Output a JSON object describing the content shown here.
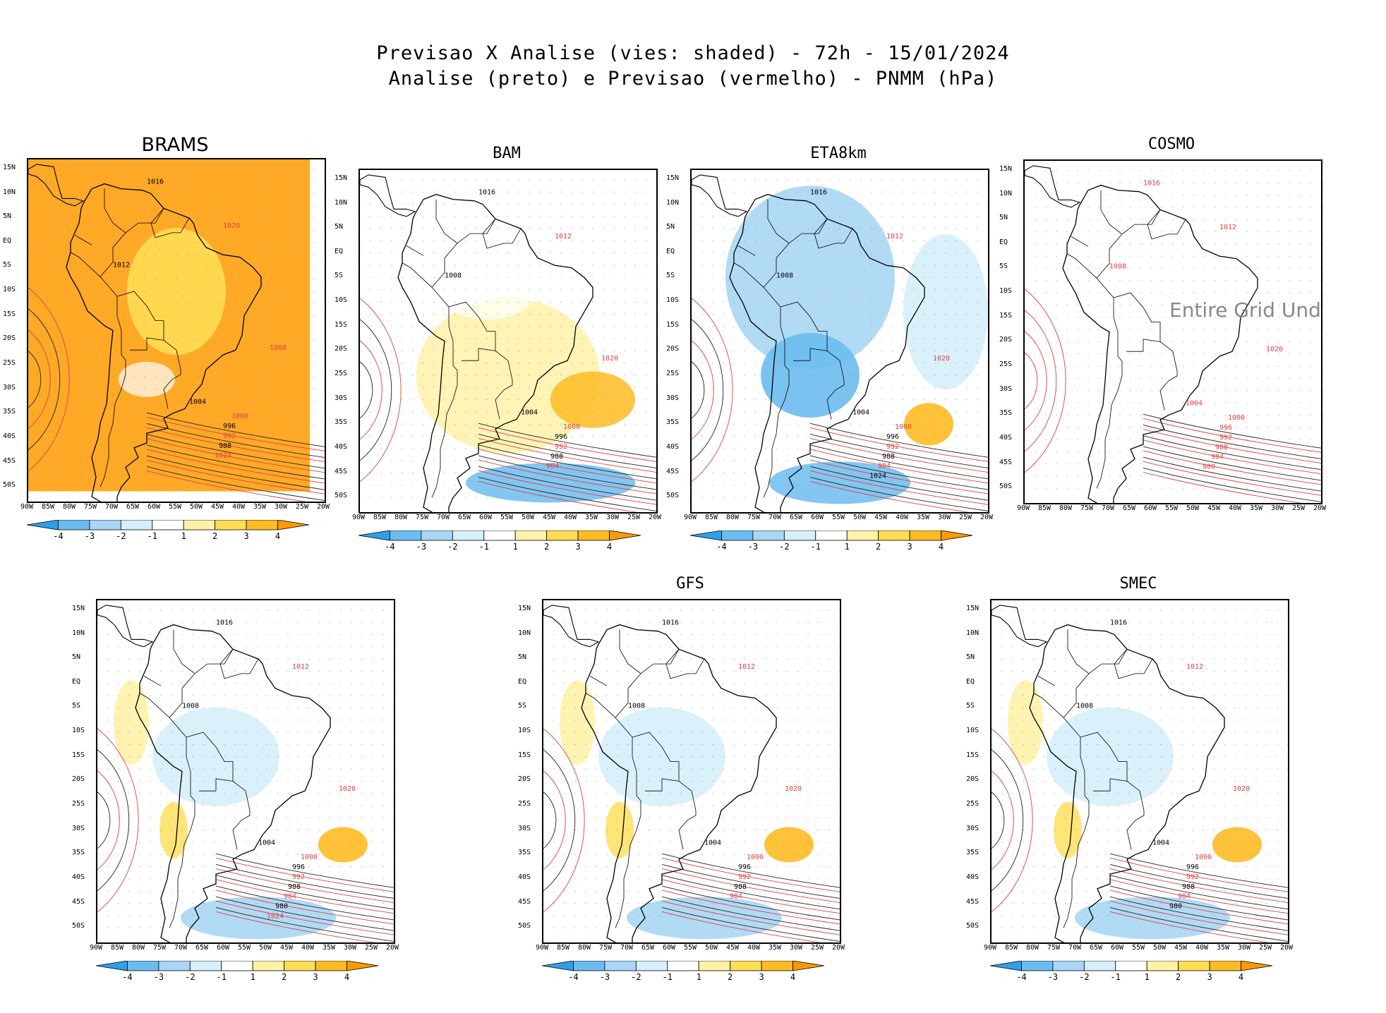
{
  "figure": {
    "title_line1": "Previsao X Analise (vies: shaded) - 72h - 15/01/2024",
    "title_line2": "Analise (preto) e Previsao (vermelho) - PNMM (hPa)"
  },
  "axes": {
    "lat_labels": [
      "15N",
      "10N",
      "5N",
      "EQ",
      "5S",
      "10S",
      "15S",
      "20S",
      "25S",
      "30S",
      "35S",
      "40S",
      "45S",
      "50S"
    ],
    "lon_labels": [
      "90W",
      "85W",
      "80W",
      "75W",
      "70W",
      "65W",
      "60W",
      "55W",
      "50W",
      "45W",
      "40W",
      "35W",
      "30W",
      "25W",
      "20W"
    ]
  },
  "colorbar": {
    "labels": [
      "-4",
      "-3",
      "-2",
      "-1",
      "1",
      "2",
      "3",
      "4"
    ],
    "colors": [
      "#2f9fe8",
      "#6cbcef",
      "#a8d6f4",
      "#d6f0fb",
      "#ffffff",
      "#fff2a8",
      "#ffdd55",
      "#ffbb22",
      "#ff9a00"
    ]
  },
  "panels": [
    {
      "name": "BRAMS",
      "bias": "warm-strong",
      "contours": [
        "1016",
        "1020",
        "1012",
        "1008",
        "1004",
        "1000",
        "996",
        "992",
        "988",
        "1024"
      ]
    },
    {
      "name": "BAM",
      "bias": "warm",
      "contours": [
        "1016",
        "1012",
        "1008",
        "1020",
        "1004",
        "1000",
        "996",
        "992",
        "988",
        "984"
      ]
    },
    {
      "name": "ETA8km",
      "bias": "cold",
      "contours": [
        "1016",
        "1012",
        "1008",
        "1020",
        "1004",
        "1000",
        "996",
        "992",
        "988",
        "984",
        "1024"
      ]
    },
    {
      "name": "COSMO",
      "bias": "none",
      "no_data": "Entire Grid Und",
      "contours": [
        "1016",
        "1012",
        "1008",
        "1020",
        "1004",
        "1000",
        "996",
        "992",
        "988",
        "984",
        "980"
      ]
    },
    {
      "name": "",
      "bias": "mixed",
      "contours": [
        "1016",
        "1012",
        "1008",
        "1020",
        "1004",
        "1000",
        "996",
        "992",
        "988",
        "984",
        "980",
        "1024"
      ]
    },
    {
      "name": "GFS",
      "bias": "mixed",
      "contours": [
        "1016",
        "1012",
        "1008",
        "1020",
        "1004",
        "1000",
        "996",
        "992",
        "988",
        "984"
      ]
    },
    {
      "name": "SMEC",
      "bias": "mixed",
      "contours": [
        "1016",
        "1012",
        "1008",
        "1020",
        "1004",
        "1000",
        "996",
        "992",
        "988",
        "984",
        "980"
      ]
    }
  ]
}
